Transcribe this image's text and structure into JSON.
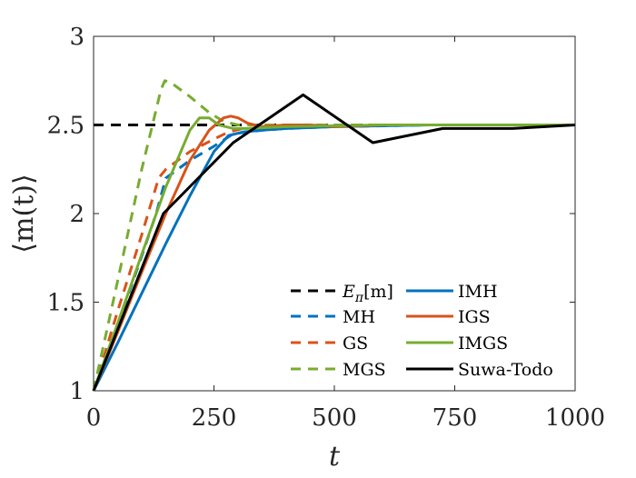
{
  "chart_data": {
    "type": "line",
    "title": "",
    "xlabel": "t",
    "ylabel": "⟨m(t)⟩",
    "xlim": [
      0,
      1000
    ],
    "ylim": [
      1,
      3
    ],
    "xticks": [
      0,
      250,
      500,
      750,
      1000
    ],
    "yticks": [
      1,
      1.5,
      2,
      2.5,
      3
    ],
    "xtick_labels": [
      "0",
      "250",
      "500",
      "750",
      "1000"
    ],
    "ytick_labels": [
      "1",
      "1.5",
      "2",
      "2.5",
      "3"
    ],
    "grid": false,
    "legend_position": "bottom-right",
    "series": [
      {
        "name": "E_π[m]",
        "label_main": "E",
        "label_sub": "π",
        "label_rest": "[m]",
        "color": "#000000",
        "dashed": true,
        "x": [
          0,
          1000
        ],
        "y": [
          2.5,
          2.5
        ]
      },
      {
        "name": "MH",
        "color": "#0072BD",
        "dashed": true,
        "x": [
          0,
          50,
          100,
          130,
          150,
          200,
          250,
          290,
          350,
          400,
          500,
          700,
          1000
        ],
        "y": [
          1.0,
          1.37,
          1.76,
          2.0,
          2.2,
          2.3,
          2.38,
          2.45,
          2.47,
          2.48,
          2.49,
          2.5,
          2.5
        ]
      },
      {
        "name": "GS",
        "color": "#D95319",
        "dashed": true,
        "x": [
          0,
          50,
          100,
          135,
          150,
          200,
          250,
          280,
          310,
          400,
          500,
          700,
          1000
        ],
        "y": [
          1.0,
          1.45,
          1.88,
          2.2,
          2.25,
          2.35,
          2.42,
          2.46,
          2.48,
          2.49,
          2.5,
          2.5,
          2.5
        ]
      },
      {
        "name": "MGS",
        "color": "#77AC30",
        "dashed": true,
        "x": [
          0,
          50,
          100,
          140,
          148,
          160,
          200,
          240,
          270,
          300,
          400,
          600,
          1000
        ],
        "y": [
          1.0,
          1.62,
          2.25,
          2.7,
          2.75,
          2.74,
          2.66,
          2.57,
          2.52,
          2.5,
          2.5,
          2.5,
          2.5
        ]
      },
      {
        "name": "IMH",
        "color": "#0072BD",
        "dashed": false,
        "x": [
          0,
          50,
          100,
          150,
          200,
          250,
          280,
          310,
          350,
          400,
          500,
          700,
          1000
        ],
        "y": [
          1.0,
          1.27,
          1.55,
          1.83,
          2.1,
          2.35,
          2.44,
          2.46,
          2.47,
          2.48,
          2.49,
          2.5,
          2.5
        ]
      },
      {
        "name": "IGS",
        "color": "#D95319",
        "dashed": false,
        "x": [
          0,
          50,
          100,
          150,
          200,
          240,
          270,
          285,
          300,
          320,
          350,
          400,
          450,
          500,
          600,
          1000
        ],
        "y": [
          1.0,
          1.33,
          1.67,
          2.0,
          2.3,
          2.47,
          2.54,
          2.55,
          2.54,
          2.51,
          2.49,
          2.5,
          2.5,
          2.49,
          2.5,
          2.5
        ]
      },
      {
        "name": "IMGS",
        "color": "#77AC30",
        "dashed": false,
        "x": [
          0,
          50,
          100,
          150,
          200,
          220,
          240,
          260,
          290,
          320,
          400,
          600,
          1000
        ],
        "y": [
          1.0,
          1.38,
          1.77,
          2.15,
          2.47,
          2.54,
          2.54,
          2.5,
          2.48,
          2.48,
          2.49,
          2.5,
          2.5
        ]
      },
      {
        "name": "Suwa-Todo",
        "color": "#000000",
        "dashed": false,
        "x": [
          0,
          145,
          290,
          435,
          580,
          725,
          870,
          1000
        ],
        "y": [
          1.0,
          2.0,
          2.4,
          2.67,
          2.4,
          2.48,
          2.48,
          2.5
        ]
      }
    ]
  }
}
